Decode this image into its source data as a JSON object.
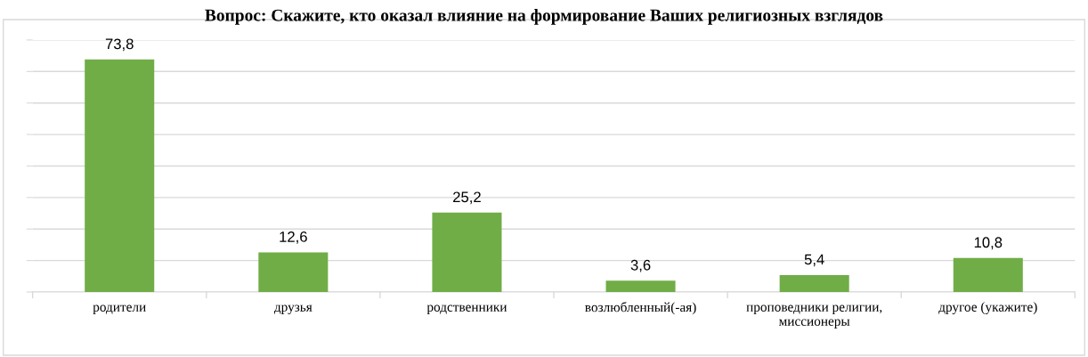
{
  "chart_data": {
    "type": "bar",
    "title": "Вопрос: Скажите, кто оказал влияние на формирование Ваших религиозных взглядов",
    "categories": [
      "родители",
      "друзья",
      "родственники",
      "возлюбленный(-ая)",
      "проповедники религии,\nмиссионеры",
      "другое (укажите)"
    ],
    "values": [
      73.8,
      12.6,
      25.2,
      3.6,
      5.4,
      10.8
    ],
    "value_labels": [
      "73,8",
      "12,6",
      "25,2",
      "3,6",
      "5,4",
      "10,8"
    ],
    "color": "#70ad47",
    "ylim": [
      0,
      80
    ],
    "yticks": [
      {
        "value": 0,
        "label": null
      },
      {
        "value": 10,
        "label": null
      },
      {
        "value": 20,
        "label": null
      },
      {
        "value": 30,
        "label": null
      },
      {
        "value": 40,
        "label": null
      },
      {
        "value": 50,
        "label": null
      },
      {
        "value": 60,
        "label": null
      },
      {
        "value": 70,
        "label": null
      },
      {
        "value": 80,
        "label": null
      }
    ],
    "tick_labels": "x",
    "grid": "y",
    "legend": false
  }
}
